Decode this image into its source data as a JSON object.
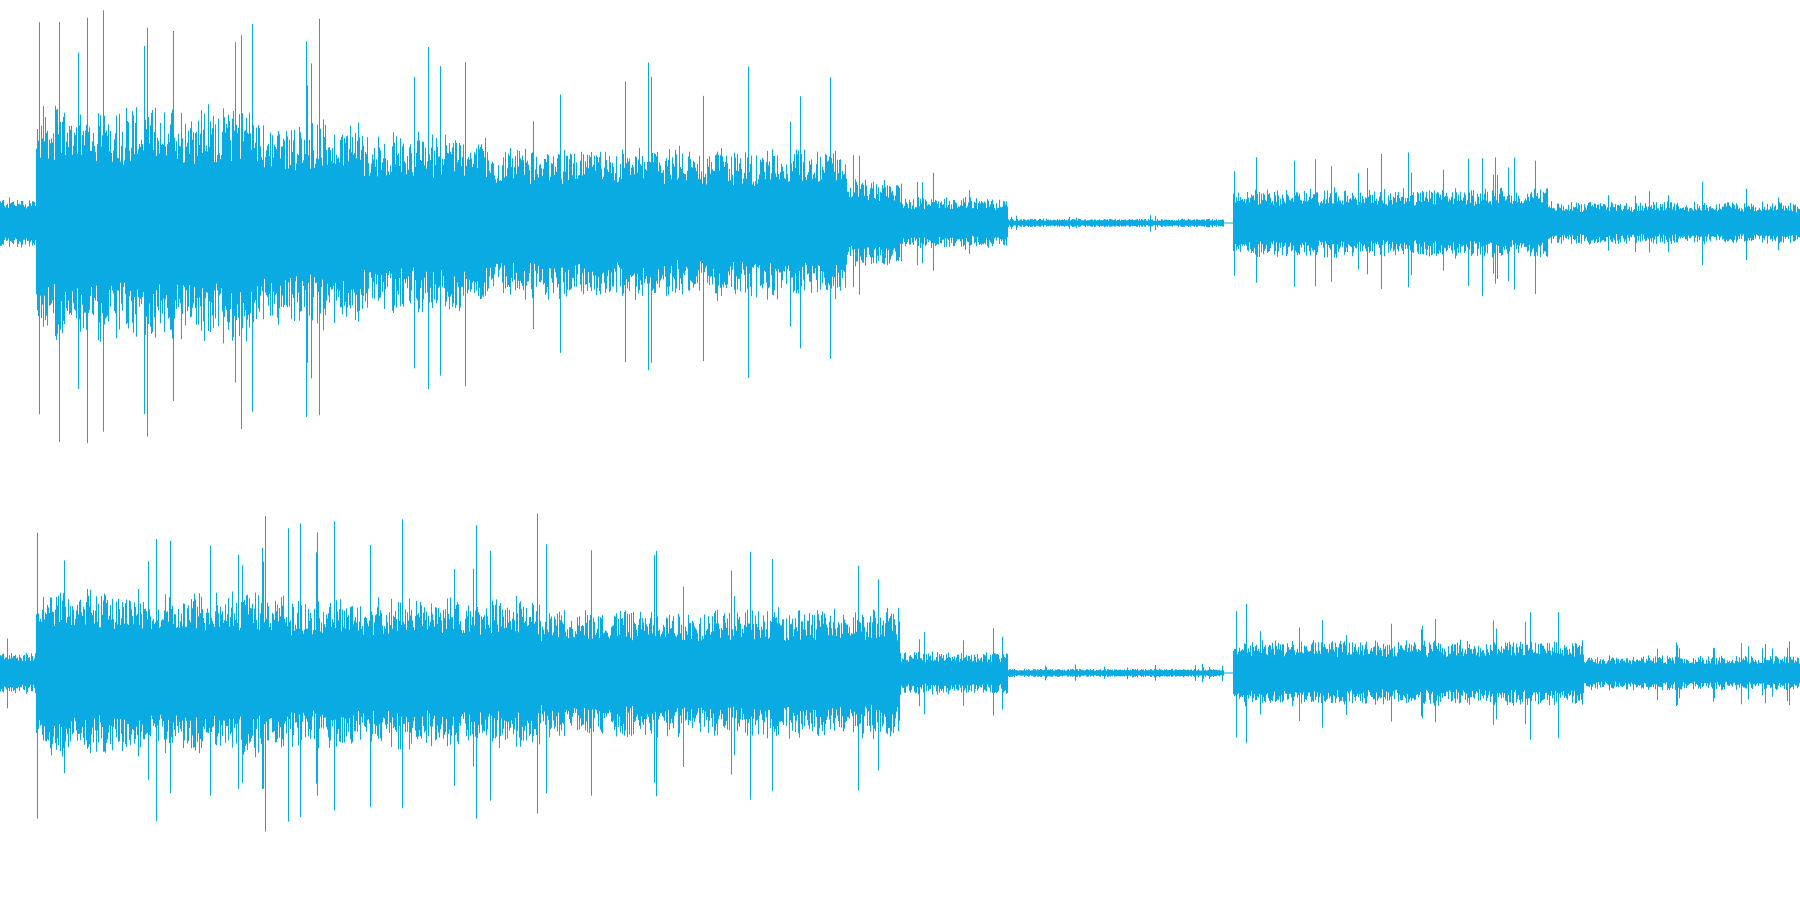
{
  "waveform": {
    "channels": [
      {
        "name": "",
        "color": "#0aaae2",
        "envelope_segments": [
          {
            "from": 0.0,
            "to": 0.02,
            "peak": 0.12
          },
          {
            "from": 0.02,
            "to": 0.14,
            "peak": 0.55
          },
          {
            "from": 0.14,
            "to": 0.2,
            "peak": 0.48
          },
          {
            "from": 0.2,
            "to": 0.27,
            "peak": 0.42
          },
          {
            "from": 0.27,
            "to": 0.47,
            "peak": 0.35
          },
          {
            "from": 0.47,
            "to": 0.5,
            "peak": 0.2
          },
          {
            "from": 0.5,
            "to": 0.56,
            "peak": 0.12
          },
          {
            "from": 0.56,
            "to": 0.68,
            "peak": 0.02
          },
          {
            "from": 0.685,
            "to": 0.86,
            "peak": 0.16
          },
          {
            "from": 0.86,
            "to": 1.0,
            "peak": 0.1
          }
        ]
      },
      {
        "name": "",
        "color": "#0aaae2",
        "envelope_segments": [
          {
            "from": 0.0,
            "to": 0.02,
            "peak": 0.1
          },
          {
            "from": 0.02,
            "to": 0.16,
            "peak": 0.38
          },
          {
            "from": 0.16,
            "to": 0.3,
            "peak": 0.35
          },
          {
            "from": 0.3,
            "to": 0.5,
            "peak": 0.3
          },
          {
            "from": 0.5,
            "to": 0.56,
            "peak": 0.1
          },
          {
            "from": 0.56,
            "to": 0.68,
            "peak": 0.02
          },
          {
            "from": 0.685,
            "to": 0.88,
            "peak": 0.15
          },
          {
            "from": 0.88,
            "to": 1.0,
            "peak": 0.08
          }
        ]
      }
    ]
  }
}
